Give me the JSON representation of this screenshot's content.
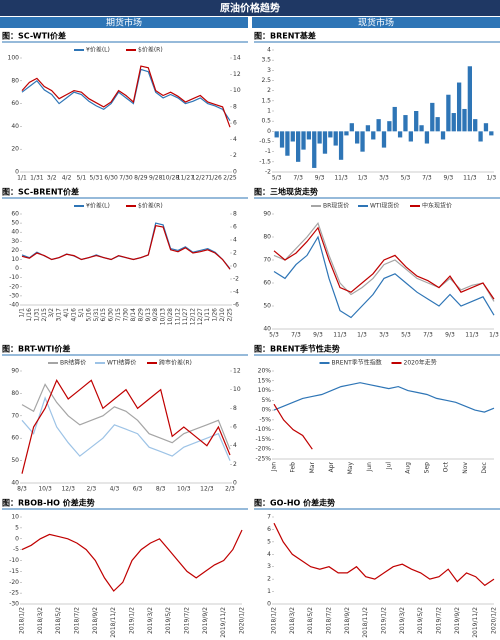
{
  "header": {
    "title": "原油价格趋势",
    "left": "期货市场",
    "right": "现货市场"
  },
  "chart_data": [
    {
      "type": "line",
      "title": "图：SC-WTI价差",
      "categories": [
        "1/1",
        null,
        "1/31",
        null,
        "3/2",
        null,
        "4/2",
        null,
        "5/1",
        null,
        "5/31",
        null,
        "6/30",
        null,
        "7/30",
        null,
        "8/29",
        null,
        "9/28",
        null,
        "10/28",
        null,
        "11/27",
        null,
        "12/27",
        null,
        "1/26",
        null,
        "2/25"
      ],
      "series": [
        {
          "name": "¥价差(L)",
          "color": "#2e75b6",
          "values": [
            70,
            75,
            80,
            72,
            68,
            60,
            65,
            70,
            68,
            62,
            58,
            55,
            60,
            70,
            65,
            60,
            90,
            88,
            70,
            65,
            68,
            65,
            60,
            62,
            65,
            60,
            58,
            55,
            45
          ]
        },
        {
          "name": "$价差(R)",
          "color": "#c00000",
          "axis": "y2",
          "values": [
            10,
            11,
            11.5,
            10.5,
            10,
            9,
            9.5,
            10,
            9.8,
            9,
            8.5,
            8,
            8.6,
            10,
            9.4,
            8.6,
            13,
            12.8,
            10,
            9.4,
            9.8,
            9.3,
            8.6,
            9,
            9.4,
            8.6,
            8.3,
            8,
            5.5
          ]
        }
      ],
      "ylim": [
        0,
        100
      ],
      "yticks": [
        0,
        20,
        40,
        60,
        80,
        100
      ],
      "y2lim": [
        0,
        14
      ],
      "y2ticks": [
        0,
        2,
        4,
        6,
        8,
        10,
        12,
        14
      ]
    },
    {
      "type": "bar",
      "title": "图：BRENT基差",
      "color": "#2e75b6",
      "categories": [
        "5/3",
        null,
        null,
        null,
        "7/3",
        null,
        null,
        null,
        "9/3",
        null,
        null,
        null,
        "11/3",
        null,
        null,
        null,
        "1/3",
        null,
        null,
        null,
        "3/3",
        null,
        null,
        null,
        "5/3",
        null,
        null,
        null,
        "7/3",
        null,
        null,
        null,
        "9/3",
        null,
        null,
        null,
        "11/3",
        null,
        null,
        null,
        "1/3"
      ],
      "values": [
        -0.3,
        -0.8,
        -1.2,
        -0.5,
        -1.5,
        -0.9,
        -0.4,
        -1.8,
        -0.6,
        -1.1,
        -0.3,
        -0.7,
        -1.4,
        -0.2,
        0.4,
        -0.6,
        -1.0,
        0.3,
        -0.4,
        0.6,
        -0.8,
        0.5,
        1.2,
        -0.3,
        0.8,
        -0.5,
        1.0,
        0.3,
        -0.6,
        1.4,
        0.7,
        -0.4,
        1.8,
        0.9,
        2.4,
        1.1,
        3.2,
        0.6,
        -0.5,
        0.4,
        -0.2
      ],
      "ylim": [
        -2,
        4
      ],
      "yticks": [
        -2,
        -1.5,
        -1,
        -0.5,
        0,
        0.5,
        1,
        1.5,
        2,
        2.5,
        3,
        3.5,
        4
      ]
    },
    {
      "type": "line",
      "title": "图：SC-BRENT价差",
      "categories": [
        "1/1",
        "1/16",
        "1/31",
        "2/15",
        "3/2",
        "3/17",
        "4/1",
        "4/16",
        "5/1",
        "5/16",
        "5/31",
        "6/15",
        "6/30",
        "7/15",
        "7/30",
        "8/14",
        "8/29",
        "9/13",
        "9/28",
        "10/13",
        "10/28",
        "11/12",
        "11/27",
        "12/12",
        "12/27",
        "1/11",
        "1/26",
        "2/10",
        "2/25"
      ],
      "series": [
        {
          "name": "¥价差(L)",
          "color": "#2e75b6",
          "values": [
            15,
            12,
            18,
            14,
            10,
            12,
            16,
            14,
            10,
            12,
            15,
            12,
            10,
            14,
            12,
            10,
            12,
            15,
            50,
            48,
            22,
            20,
            24,
            18,
            20,
            22,
            18,
            10,
            0
          ]
        },
        {
          "name": "$价差(R)",
          "color": "#c00000",
          "axis": "y2",
          "values": [
            1.5,
            1.2,
            2,
            1.6,
            1,
            1.3,
            1.8,
            1.6,
            1,
            1.3,
            1.6,
            1.3,
            1,
            1.6,
            1.3,
            1,
            1.3,
            1.7,
            6.2,
            6,
            2.5,
            2.2,
            2.8,
            2,
            2.2,
            2.5,
            2,
            1,
            -0.5
          ]
        }
      ],
      "ylim": [
        -40,
        60
      ],
      "yticks": [
        -40,
        -30,
        -20,
        -10,
        0,
        10,
        20,
        30,
        40,
        50,
        60
      ],
      "y2lim": [
        -6,
        8
      ],
      "y2ticks": [
        -6,
        -4,
        -2,
        0,
        2,
        4,
        6,
        8
      ]
    },
    {
      "type": "line",
      "title": "图：三地现货走势",
      "categories": [
        "5/3",
        null,
        "7/3",
        null,
        "9/3",
        null,
        "11/3",
        null,
        "1/3",
        null,
        "3/3",
        null,
        "5/3",
        null,
        "7/3",
        null,
        "9/3",
        null,
        "11/3",
        null,
        "1/3"
      ],
      "series": [
        {
          "name": "BR现货价",
          "color": "#a5a5a5",
          "values": [
            72,
            70,
            75,
            80,
            86,
            72,
            60,
            55,
            58,
            62,
            68,
            70,
            66,
            62,
            60,
            58,
            62,
            57,
            59,
            60,
            52
          ]
        },
        {
          "name": "WTI现货价",
          "color": "#2e75b6",
          "values": [
            65,
            62,
            68,
            72,
            80,
            62,
            48,
            45,
            50,
            55,
            62,
            64,
            60,
            56,
            53,
            50,
            55,
            50,
            52,
            54,
            46
          ]
        },
        {
          "name": "中东现货价",
          "color": "#c00000",
          "values": [
            74,
            70,
            73,
            78,
            84,
            70,
            58,
            56,
            60,
            64,
            70,
            72,
            67,
            63,
            61,
            58,
            63,
            56,
            58,
            60,
            53
          ]
        }
      ],
      "ylim": [
        40,
        90
      ],
      "yticks": [
        40,
        50,
        60,
        70,
        80,
        90
      ]
    },
    {
      "type": "line",
      "title": "图：BRT-WTI价差",
      "categories": [
        "8/3",
        null,
        "10/3",
        null,
        "12/3",
        null,
        "2/3",
        null,
        "4/3",
        null,
        "6/3",
        null,
        "8/3",
        null,
        "10/3",
        null,
        "12/3",
        null,
        "2/3"
      ],
      "series": [
        {
          "name": "BR结算价",
          "color": "#a5a5a5",
          "values": [
            75,
            72,
            84,
            76,
            70,
            66,
            68,
            70,
            74,
            72,
            68,
            62,
            60,
            58,
            62,
            64,
            66,
            68,
            55
          ]
        },
        {
          "name": "WTI结算价",
          "color": "#9dc3e6",
          "values": [
            68,
            62,
            78,
            65,
            58,
            52,
            56,
            60,
            66,
            64,
            62,
            56,
            54,
            52,
            56,
            58,
            60,
            62,
            50
          ]
        },
        {
          "name": "跨市价差(R)",
          "color": "#c00000",
          "axis": "y2",
          "values": [
            1,
            6,
            8,
            11,
            9,
            10,
            11,
            8,
            9,
            10,
            8,
            9,
            10,
            5,
            6,
            5,
            4,
            6,
            3
          ]
        }
      ],
      "ylim": [
        40,
        90
      ],
      "yticks": [
        40,
        50,
        60,
        70,
        80,
        90
      ],
      "y2lim": [
        0,
        12
      ],
      "y2ticks": [
        0,
        2,
        4,
        6,
        8,
        10,
        12
      ]
    },
    {
      "type": "line",
      "title": "图：BRENT季节性走势",
      "categories": [
        "Jan",
        null,
        "Feb",
        null,
        "Mar",
        null,
        "Apr",
        null,
        "May",
        null,
        "Jun",
        null,
        "Jul",
        null,
        "Aug",
        null,
        "Sep",
        null,
        "Oct",
        null,
        "Nov",
        null,
        "Dec",
        null
      ],
      "series": [
        {
          "name": "BRENT季节性指数",
          "color": "#2e75b6",
          "values": [
            0,
            2,
            4,
            6,
            7,
            8,
            10,
            12,
            13,
            14,
            13,
            12,
            11,
            12,
            10,
            9,
            8,
            6,
            5,
            4,
            2,
            0,
            -1,
            1
          ]
        },
        {
          "name": "2020年走势",
          "color": "#c00000",
          "values": [
            3,
            -5,
            -10,
            -13,
            -20,
            null,
            null,
            null,
            null,
            null,
            null,
            null,
            null,
            null,
            null,
            null,
            null,
            null,
            null,
            null,
            null,
            null,
            null,
            null
          ]
        }
      ],
      "ylim": [
        -25,
        20
      ],
      "yticks": [
        {
          "value": -25,
          "label": "-25%"
        },
        {
          "value": -20,
          "label": "-20%"
        },
        {
          "value": -15,
          "label": "-15%"
        },
        {
          "value": -10,
          "label": "-10%"
        },
        {
          "value": -5,
          "label": "-5%"
        },
        {
          "value": 0,
          "label": "0%"
        },
        {
          "value": 5,
          "label": "5%"
        },
        {
          "value": 10,
          "label": "10%"
        },
        {
          "value": 15,
          "label": "15%"
        },
        {
          "value": 20,
          "label": "20%"
        }
      ]
    },
    {
      "type": "line",
      "title": "图：RBOB-HO 价差走势",
      "categories": [
        "2018/1/2",
        null,
        "2018/3/2",
        null,
        "2018/5/2",
        null,
        "2018/7/2",
        null,
        "2018/9/2",
        null,
        "2018/11/2",
        null,
        "2019/1/2",
        null,
        "2019/3/2",
        null,
        "2019/5/2",
        null,
        "2019/7/2",
        null,
        "2019/9/2",
        null,
        "2019/11/2",
        null,
        "2020/1/2"
      ],
      "series": [
        {
          "color": "#c00000",
          "values": [
            -5,
            -3,
            0,
            2,
            1,
            0,
            -2,
            -5,
            -10,
            -18,
            -24,
            -20,
            -10,
            -5,
            -2,
            0,
            -5,
            -10,
            -15,
            -18,
            -15,
            -12,
            -10,
            -5,
            4
          ]
        }
      ],
      "ylim": [
        -30,
        10
      ],
      "yticks": [
        -30,
        -25,
        -20,
        -15,
        -10,
        -5,
        0,
        5,
        10
      ]
    },
    {
      "type": "line",
      "title": "图：GO-HO 价差走势",
      "categories": [
        "2018/1/2",
        null,
        "2018/3/2",
        null,
        "2018/5/2",
        null,
        "2018/7/2",
        null,
        "2018/9/2",
        null,
        "2018/11/2",
        null,
        "2019/1/2",
        null,
        "2019/3/2",
        null,
        "2019/5/2",
        null,
        "2019/7/2",
        null,
        "2019/9/2",
        null,
        "2019/11/2",
        null,
        "2020/1/2"
      ],
      "series": [
        {
          "color": "#c00000",
          "values": [
            6.5,
            5,
            4,
            3.5,
            3,
            2.8,
            3,
            2.5,
            2.5,
            3,
            2.2,
            2,
            2.5,
            3,
            3.2,
            2.8,
            2.5,
            2,
            2.2,
            2.8,
            1.8,
            2.5,
            2.2,
            1.5,
            2
          ]
        }
      ],
      "ylim": [
        0,
        7
      ],
      "yticks": [
        0,
        1,
        2,
        3,
        4,
        5,
        6,
        7
      ]
    }
  ]
}
